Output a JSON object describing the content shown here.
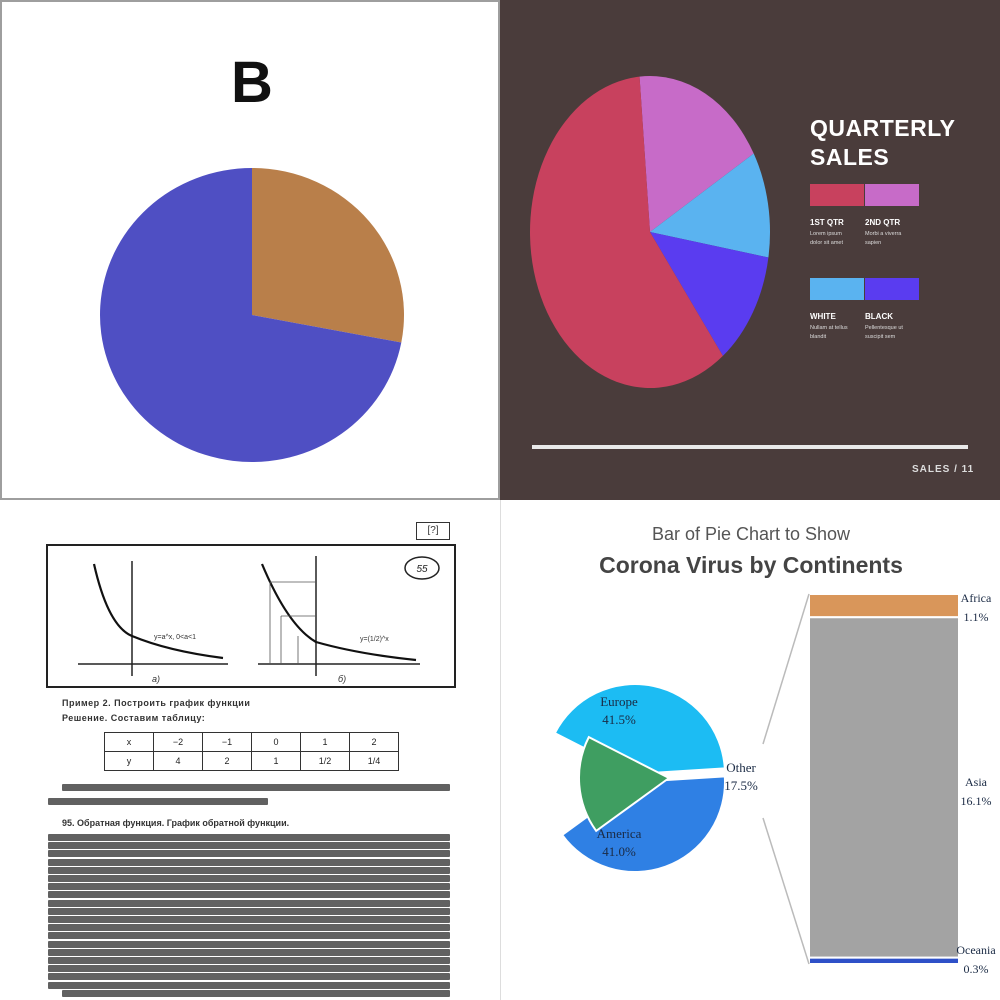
{
  "panel_b": {
    "title": "B",
    "colors": {
      "major": "#4f4fc3",
      "minor": "#b97f4a"
    }
  },
  "panel_quarterly": {
    "title_line1": "QUARTERLY",
    "title_line2": "SALES",
    "legend": [
      {
        "name": "1ST QTR",
        "desc1": "Lorem ipsum",
        "desc2": "dolor sit amet",
        "color": "#c8415e"
      },
      {
        "name": "2ND QTR",
        "desc1": "Morbi a viverra",
        "desc2": "sapien",
        "color": "#c76bc8"
      },
      {
        "name": "WHITE",
        "desc1": "Nullam at tellus",
        "desc2": "blandit",
        "color": "#5ab3f0"
      },
      {
        "name": "BLACK",
        "desc1": "Pellentesque ut",
        "desc2": "suscipit sem",
        "color": "#5a3cf0"
      }
    ],
    "footer": "SALES / 11"
  },
  "panel_scan": {
    "page_number": "55",
    "corner_label": "[?]",
    "graph_a_label": "a)",
    "graph_b_label": "б)",
    "curve_a_label": "y=a^x, 0<a<1",
    "curve_b_label": "y=(1/2)^x",
    "example_heading": "Пример 2. Построить график функции",
    "solution_heading": "Решение. Составим таблицу:",
    "table_rows": [
      [
        "x",
        "−2",
        "−1",
        "0",
        "1",
        "2"
      ],
      [
        "y",
        "4",
        "2",
        "1",
        "1/2",
        "1/4"
      ]
    ],
    "paragraph_heading": "95. Обратная функция. График обратной функции."
  },
  "panel_corona": {
    "subtitle": "Bar of Pie Chart to Show",
    "title": "Corona Virus by Continents",
    "colors": {
      "europe": "#1cbcf3",
      "america": "#2f80e4",
      "other": "#3f9e61",
      "africa": "#d9965a",
      "asia": "#a3a3a3",
      "oceania": "#2e50c8"
    }
  },
  "chart_data": [
    {
      "type": "pie",
      "title": "B",
      "slices": [
        {
          "label": "",
          "value": 72,
          "color": "#4f4fc3"
        },
        {
          "label": "",
          "value": 28,
          "color": "#b97f4a"
        }
      ]
    },
    {
      "type": "pie",
      "title": "QUARTERLY SALES",
      "slices": [
        {
          "label": "1ST QTR",
          "value": 59,
          "color": "#c8415e"
        },
        {
          "label": "2ND QTR",
          "value": 18,
          "color": "#c76bc8"
        },
        {
          "label": "WHITE",
          "value": 11,
          "color": "#5ab3f0"
        },
        {
          "label": "BLACK",
          "value": 12,
          "color": "#5a3cf0"
        }
      ]
    },
    {
      "type": "pie",
      "title": "Corona Virus by Continents",
      "subtitle": "Bar of Pie Chart to Show",
      "slices": [
        {
          "label": "Europe",
          "value": 41.5,
          "display": "41.5%"
        },
        {
          "label": "America",
          "value": 41.0,
          "display": "41.0%"
        },
        {
          "label": "Other",
          "value": 17.5,
          "display": "17.5%"
        }
      ],
      "bar_of_pie": [
        {
          "label": "Africa",
          "value": 1.1,
          "display": "1.1%"
        },
        {
          "label": "Asia",
          "value": 16.1,
          "display": "16.1%"
        },
        {
          "label": "Oceania",
          "value": 0.3,
          "display": "0.3%"
        }
      ]
    }
  ]
}
